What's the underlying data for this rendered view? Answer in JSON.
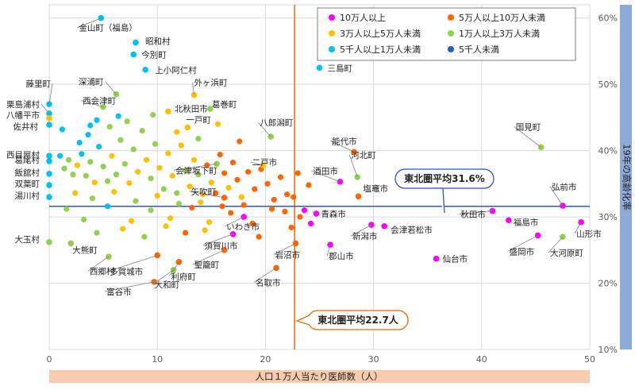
{
  "chart_data": {
    "type": "scatter",
    "xlabel": "人口１万人当たり医師数（人）",
    "ylabel": "19年の高齢化率",
    "xlim": [
      0,
      50
    ],
    "ylim": [
      10,
      62
    ],
    "x_ticks": [
      "0",
      "10",
      "20",
      "30",
      "40",
      "50"
    ],
    "y_ticks": [
      "10%",
      "20%",
      "30%",
      "40%",
      "50%",
      "60%"
    ],
    "grid": true,
    "legend_position": "top-right",
    "series": [
      {
        "name": "10万人以上",
        "color": "#ff00ff"
      },
      {
        "name": "5万人以上10万人未満",
        "color": "#ff6600"
      },
      {
        "name": "3万人以上5万人未満",
        "color": "#ffc000"
      },
      {
        "name": "1万人以上3万人未満",
        "color": "#92d050"
      },
      {
        "name": "5千人以上1万人未満",
        "color": "#00c0f0"
      },
      {
        "name": "5千人未満",
        "color": "#1f5fbf"
      }
    ],
    "reference_lines": [
      {
        "axis": "y",
        "value": 31.6,
        "label": "東北圏平均31.6%",
        "color": "#2f55c8"
      },
      {
        "axis": "x",
        "value": 22.7,
        "label": "東北圏平均22.7人",
        "color": "#e36c0a"
      }
    ],
    "labeled_points": [
      {
        "label": "金山町（福島）",
        "x": 4.8,
        "y": 60.0,
        "series": 5
      },
      {
        "label": "昭和村",
        "x": 8.0,
        "y": 56.3,
        "series": 5
      },
      {
        "label": "今別町",
        "x": 7.8,
        "y": 54.5,
        "series": 5
      },
      {
        "label": "上小阿仁村",
        "x": 8.9,
        "y": 52.2,
        "series": 5
      },
      {
        "label": "三島町",
        "x": 25.0,
        "y": 52.5,
        "series": 5
      },
      {
        "label": "深浦町",
        "x": 6.2,
        "y": 48.5,
        "series": 4
      },
      {
        "label": "外ヶ浜町",
        "x": 13.4,
        "y": 48.4,
        "series": 3
      },
      {
        "label": "藤里町",
        "x": 0,
        "y": 47.0,
        "series": 5
      },
      {
        "label": "西会津町",
        "x": 5.0,
        "y": 46.6,
        "series": 4
      },
      {
        "label": "栗島浦村",
        "x": 0,
        "y": 45.6,
        "series": 5
      },
      {
        "label": "八幡平市",
        "x": 0,
        "y": 44.9,
        "series": 3
      },
      {
        "label": "葛巻町",
        "x": 14.9,
        "y": 46.3,
        "series": 4
      },
      {
        "label": "北秋田市",
        "x": 11.0,
        "y": 45.9,
        "series": 3
      },
      {
        "label": "佐井村",
        "x": 0,
        "y": 43.9,
        "series": 5
      },
      {
        "label": "八郎潟町",
        "x": 20.5,
        "y": 42.1,
        "series": 4
      },
      {
        "label": "一戸町",
        "x": 12.8,
        "y": 43.5,
        "series": 3
      },
      {
        "label": "国見町",
        "x": 45.5,
        "y": 40.5,
        "series": 4
      },
      {
        "label": "能代市",
        "x": 28.2,
        "y": 39.8,
        "series": 2
      },
      {
        "label": "西目屋村",
        "x": 0,
        "y": 39.2,
        "series": 5
      },
      {
        "label": "二戸市",
        "x": 19.8,
        "y": 37.8,
        "series": 3
      },
      {
        "label": "河北町",
        "x": 28.5,
        "y": 36.0,
        "series": 4
      },
      {
        "label": "会津坂下町",
        "x": 15.5,
        "y": 38.0,
        "series": 4
      },
      {
        "label": "葛尾村",
        "x": 0,
        "y": 38.4,
        "series": 5
      },
      {
        "label": "酒田市",
        "x": 26.9,
        "y": 35.3,
        "series": 1
      },
      {
        "label": "飯舘村",
        "x": 0,
        "y": 36.5,
        "series": 5
      },
      {
        "label": "塩竈市",
        "x": 28.6,
        "y": 33.1,
        "series": 2
      },
      {
        "label": "双葉町",
        "x": 0,
        "y": 34.8,
        "series": 5
      },
      {
        "label": "矢吹町",
        "x": 16.2,
        "y": 32.9,
        "series": 2
      },
      {
        "label": "弘前市",
        "x": 47.5,
        "y": 31.7,
        "series": 1
      },
      {
        "label": "湯川村",
        "x": 0,
        "y": 33.0,
        "series": 5
      },
      {
        "label": "青森市",
        "x": 24.7,
        "y": 30.5,
        "series": 1
      },
      {
        "label": "秋田市",
        "x": 41.0,
        "y": 30.9,
        "series": 1
      },
      {
        "label": "いわき市",
        "x": 18.0,
        "y": 30.0,
        "series": 1
      },
      {
        "label": "福島市",
        "x": 42.5,
        "y": 29.5,
        "series": 1
      },
      {
        "label": "山形市",
        "x": 49.2,
        "y": 29.2,
        "series": 1
      },
      {
        "label": "新潟市",
        "x": 29.8,
        "y": 28.8,
        "series": 1
      },
      {
        "label": "会津若松市",
        "x": 31.0,
        "y": 28.6,
        "series": 1
      },
      {
        "label": "大玉村",
        "x": 0,
        "y": 26.2,
        "series": 4
      },
      {
        "label": "須賀川市",
        "x": 17.0,
        "y": 27.4,
        "series": 1
      },
      {
        "label": "盛岡市",
        "x": 45.2,
        "y": 27.2,
        "series": 1
      },
      {
        "label": "大河原町",
        "x": 47.5,
        "y": 27.0,
        "series": 4
      },
      {
        "label": "岩沼市",
        "x": 22.8,
        "y": 26.0,
        "series": 2
      },
      {
        "label": "郡山市",
        "x": 26.0,
        "y": 25.8,
        "series": 1
      },
      {
        "label": "大熊町",
        "x": 2.0,
        "y": 26.0,
        "series": 4
      },
      {
        "label": "聖籠町",
        "x": 16.2,
        "y": 25.0,
        "series": 2
      },
      {
        "label": "仙台市",
        "x": 35.8,
        "y": 23.7,
        "series": 1
      },
      {
        "label": "西郷村",
        "x": 5.5,
        "y": 24.0,
        "series": 4
      },
      {
        "label": "多賀城市",
        "x": 10.0,
        "y": 24.2,
        "series": 2
      },
      {
        "label": "利府町",
        "x": 12.0,
        "y": 23.2,
        "series": 2
      },
      {
        "label": "名取市",
        "x": 21.0,
        "y": 22.3,
        "series": 2
      },
      {
        "label": "大和町",
        "x": 11.5,
        "y": 22.0,
        "series": 4
      },
      {
        "label": "富谷市",
        "x": 9.7,
        "y": 20.2,
        "series": 2
      }
    ],
    "other_points": [
      {
        "x": 1.0,
        "y": 39.2,
        "series": 5
      },
      {
        "x": 1.4,
        "y": 37.3,
        "series": 4
      },
      {
        "x": 1.8,
        "y": 38.6,
        "series": 4
      },
      {
        "x": 2.2,
        "y": 36.4,
        "series": 4
      },
      {
        "x": 2.6,
        "y": 37.8,
        "series": 3
      },
      {
        "x": 3.0,
        "y": 39.5,
        "series": 5
      },
      {
        "x": 3.4,
        "y": 36.2,
        "series": 4
      },
      {
        "x": 3.8,
        "y": 38.3,
        "series": 4
      },
      {
        "x": 4.2,
        "y": 35.2,
        "series": 3
      },
      {
        "x": 4.6,
        "y": 40.6,
        "series": 5
      },
      {
        "x": 5.0,
        "y": 37.6,
        "series": 4
      },
      {
        "x": 5.4,
        "y": 35.4,
        "series": 4
      },
      {
        "x": 5.8,
        "y": 39.2,
        "series": 3
      },
      {
        "x": 6.2,
        "y": 36.4,
        "series": 4
      },
      {
        "x": 6.6,
        "y": 41.6,
        "series": 4
      },
      {
        "x": 7.0,
        "y": 38.0,
        "series": 4
      },
      {
        "x": 7.4,
        "y": 35.1,
        "series": 3
      },
      {
        "x": 7.8,
        "y": 40.2,
        "series": 4
      },
      {
        "x": 8.2,
        "y": 36.8,
        "series": 3
      },
      {
        "x": 8.6,
        "y": 43.0,
        "series": 4
      },
      {
        "x": 9.0,
        "y": 38.6,
        "series": 3
      },
      {
        "x": 9.4,
        "y": 35.8,
        "series": 4
      },
      {
        "x": 9.8,
        "y": 41.0,
        "series": 4
      },
      {
        "x": 10.2,
        "y": 37.4,
        "series": 3
      },
      {
        "x": 10.6,
        "y": 34.2,
        "series": 4
      },
      {
        "x": 11.0,
        "y": 39.6,
        "series": 3
      },
      {
        "x": 11.4,
        "y": 36.2,
        "series": 3
      },
      {
        "x": 11.8,
        "y": 33.6,
        "series": 4
      },
      {
        "x": 12.2,
        "y": 40.8,
        "series": 3
      },
      {
        "x": 12.6,
        "y": 37.0,
        "series": 4
      },
      {
        "x": 13.0,
        "y": 34.6,
        "series": 3
      },
      {
        "x": 13.4,
        "y": 38.6,
        "series": 3
      },
      {
        "x": 13.8,
        "y": 36.4,
        "series": 4
      },
      {
        "x": 14.2,
        "y": 33.4,
        "series": 3
      },
      {
        "x": 14.6,
        "y": 37.8,
        "series": 2
      },
      {
        "x": 15.0,
        "y": 35.2,
        "series": 3
      },
      {
        "x": 15.4,
        "y": 33.6,
        "series": 2
      },
      {
        "x": 15.8,
        "y": 39.4,
        "series": 2
      },
      {
        "x": 16.2,
        "y": 36.6,
        "series": 2
      },
      {
        "x": 16.6,
        "y": 34.4,
        "series": 3
      },
      {
        "x": 17.0,
        "y": 38.2,
        "series": 2
      },
      {
        "x": 17.4,
        "y": 35.6,
        "series": 2
      },
      {
        "x": 17.8,
        "y": 33.0,
        "series": 3
      },
      {
        "x": 18.4,
        "y": 36.8,
        "series": 2
      },
      {
        "x": 19.0,
        "y": 34.2,
        "series": 2
      },
      {
        "x": 19.6,
        "y": 37.2,
        "series": 2
      },
      {
        "x": 20.2,
        "y": 35.0,
        "series": 2
      },
      {
        "x": 20.8,
        "y": 32.6,
        "series": 2
      },
      {
        "x": 21.4,
        "y": 36.0,
        "series": 2
      },
      {
        "x": 22.0,
        "y": 33.4,
        "series": 2
      },
      {
        "x": 1.2,
        "y": 43.2,
        "series": 5
      },
      {
        "x": 2.8,
        "y": 41.2,
        "series": 5
      },
      {
        "x": 3.6,
        "y": 42.4,
        "series": 5
      },
      {
        "x": 5.6,
        "y": 43.6,
        "series": 4
      },
      {
        "x": 7.2,
        "y": 44.4,
        "series": 4
      },
      {
        "x": 9.6,
        "y": 45.4,
        "series": 4
      },
      {
        "x": 11.8,
        "y": 42.8,
        "series": 3
      },
      {
        "x": 13.8,
        "y": 41.8,
        "series": 4
      },
      {
        "x": 15.6,
        "y": 44.0,
        "series": 3
      },
      {
        "x": 17.6,
        "y": 41.4,
        "series": 2
      },
      {
        "x": 1.6,
        "y": 31.2,
        "series": 4
      },
      {
        "x": 3.2,
        "y": 29.6,
        "series": 4
      },
      {
        "x": 5.4,
        "y": 31.6,
        "series": 5
      },
      {
        "x": 7.6,
        "y": 29.4,
        "series": 3
      },
      {
        "x": 9.4,
        "y": 31.0,
        "series": 4
      },
      {
        "x": 11.2,
        "y": 29.8,
        "series": 3
      },
      {
        "x": 13.2,
        "y": 31.4,
        "series": 2
      },
      {
        "x": 14.8,
        "y": 29.2,
        "series": 3
      },
      {
        "x": 16.8,
        "y": 30.6,
        "series": 2
      },
      {
        "x": 18.8,
        "y": 29.0,
        "series": 2
      },
      {
        "x": 20.6,
        "y": 31.2,
        "series": 2
      },
      {
        "x": 2.4,
        "y": 33.6,
        "series": 3
      },
      {
        "x": 4.0,
        "y": 32.8,
        "series": 4
      },
      {
        "x": 6.0,
        "y": 33.8,
        "series": 3
      },
      {
        "x": 8.0,
        "y": 32.4,
        "series": 4
      },
      {
        "x": 10.0,
        "y": 33.2,
        "series": 3
      },
      {
        "x": 12.0,
        "y": 32.0,
        "series": 4
      },
      {
        "x": 14.0,
        "y": 32.2,
        "series": 3
      },
      {
        "x": 16.0,
        "y": 31.6,
        "series": 2
      },
      {
        "x": 18.0,
        "y": 31.8,
        "series": 2
      },
      {
        "x": 21.8,
        "y": 30.8,
        "series": 2
      },
      {
        "x": 4.4,
        "y": 27.6,
        "series": 4
      },
      {
        "x": 6.8,
        "y": 28.2,
        "series": 3
      },
      {
        "x": 8.8,
        "y": 27.0,
        "series": 4
      },
      {
        "x": 10.8,
        "y": 28.6,
        "series": 3
      },
      {
        "x": 12.6,
        "y": 27.6,
        "series": 2
      },
      {
        "x": 14.4,
        "y": 28.0,
        "series": 3
      },
      {
        "x": 19.4,
        "y": 27.0,
        "series": 2
      },
      {
        "x": 22.4,
        "y": 28.4,
        "series": 2
      },
      {
        "x": 23.6,
        "y": 31.0,
        "series": 1
      },
      {
        "x": 23.2,
        "y": 30.0,
        "series": 2
      },
      {
        "x": 24.0,
        "y": 34.8,
        "series": 2
      },
      {
        "x": 23.0,
        "y": 36.6,
        "series": 2
      },
      {
        "x": 22.6,
        "y": 33.0,
        "series": 2
      },
      {
        "x": 24.2,
        "y": 29.0,
        "series": 1
      },
      {
        "x": 6.4,
        "y": 45.2,
        "series": 5
      },
      {
        "x": 4.4,
        "y": 44.6,
        "series": 5
      },
      {
        "x": 3.8,
        "y": 43.8,
        "series": 5
      }
    ]
  }
}
